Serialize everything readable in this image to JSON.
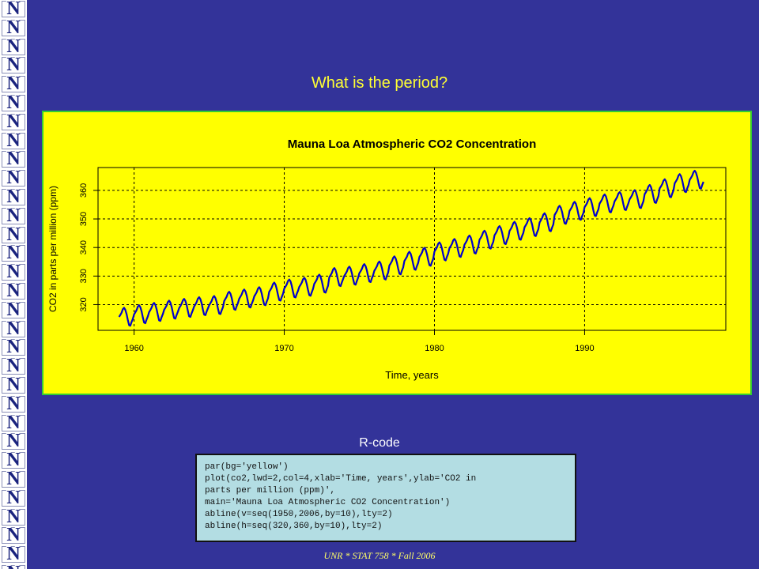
{
  "slide": {
    "title": "What is the period?",
    "rcode_label": "R-code",
    "footer": "UNR * STAT 758 * Fall 2006",
    "logo_letter": "N",
    "colors": {
      "background": "#333399",
      "title": "#ffff33",
      "panel": "#ffff00",
      "panel_border": "#33cc33",
      "series": "#0000cc"
    }
  },
  "code": {
    "lines": [
      "par(bg='yellow')",
      "plot(co2,lwd=2,col=4,xlab='Time, years',ylab='CO2 in",
      "parts per million (ppm)',",
      "main='Mauna Loa Atmospheric CO2 Concentration')",
      "abline(v=seq(1950,2006,by=10),lty=2)",
      "abline(h=seq(320,360,by=10),lty=2)"
    ]
  },
  "chart_data": {
    "type": "line",
    "title": "Mauna Loa Atmospheric CO2 Concentration",
    "xlabel": "Time, years",
    "ylabel": "CO2 in parts per million (ppm)",
    "xlim": [
      1957.6,
      1999.4
    ],
    "ylim": [
      311,
      368
    ],
    "x_ticks": [
      1960,
      1970,
      1980,
      1990
    ],
    "y_ticks": [
      320,
      330,
      340,
      350,
      360
    ],
    "vlines": [
      1960,
      1970,
      1980,
      1990
    ],
    "hlines": [
      320,
      330,
      340,
      350,
      360
    ],
    "grid": true,
    "series": [
      {
        "color": "#0000cc",
        "start": 1959.0,
        "frequency": 12,
        "annual_means": [
          315.8,
          316.7,
          317.5,
          318.3,
          318.9,
          319.5,
          319.9,
          321.4,
          322.2,
          323.0,
          324.6,
          325.7,
          326.3,
          327.4,
          329.7,
          330.2,
          331.1,
          332.0,
          333.8,
          335.4,
          336.8,
          338.7,
          339.9,
          341.1,
          342.8,
          344.4,
          345.9,
          347.2,
          348.9,
          351.5,
          352.9,
          354.2,
          355.5,
          356.3,
          357.0,
          358.8,
          360.8,
          362.6,
          363.8
        ],
        "monthly_pattern": [
          -0.1,
          0.6,
          1.4,
          2.6,
          3.1,
          2.4,
          0.9,
          -1.2,
          -3.0,
          -3.2,
          -1.9,
          -0.8
        ]
      }
    ]
  }
}
